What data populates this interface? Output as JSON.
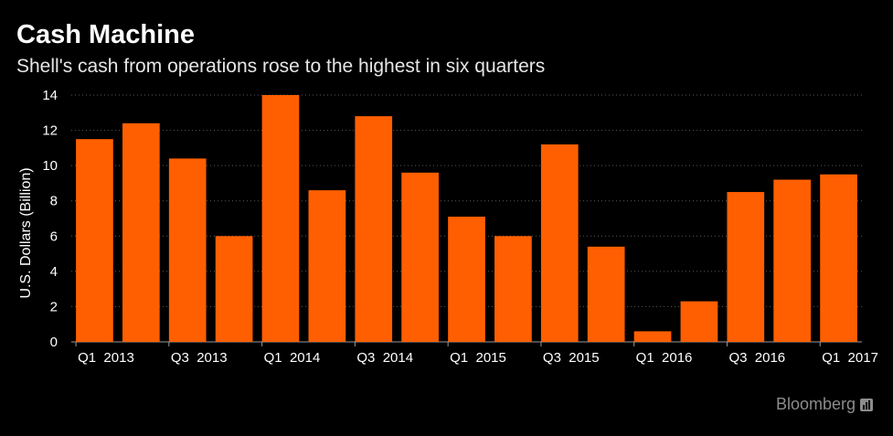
{
  "header": {
    "title": "Cash Machine",
    "subtitle": "Shell's cash from operations rose to the highest in six quarters"
  },
  "source": {
    "label": "Bloomberg",
    "icon": "bloomberg-chart-icon"
  },
  "colors": {
    "background": "#000000",
    "bar": "#ff5f00",
    "grid": "#5a5a5a",
    "text": "#ffffff",
    "source": "#8c8c8c"
  },
  "chart_data": {
    "type": "bar",
    "title": "Cash Machine",
    "subtitle": "Shell's cash from operations rose to the highest in six quarters",
    "xlabel": "",
    "ylabel": "U.S. Dollars (Billion)",
    "ylim": [
      0,
      14
    ],
    "yticks": [
      0,
      2,
      4,
      6,
      8,
      10,
      12,
      14
    ],
    "grid": true,
    "categories": [
      "Q1 2013",
      "Q2 2013",
      "Q3 2013",
      "Q4 2013",
      "Q1 2014",
      "Q2 2014",
      "Q3 2014",
      "Q4 2014",
      "Q1 2015",
      "Q2 2015",
      "Q3 2015",
      "Q4 2015",
      "Q1 2016",
      "Q2 2016",
      "Q3 2016",
      "Q4 2016",
      "Q1 2017"
    ],
    "tick_labels": [
      "Q1  2013",
      "",
      "Q3  2013",
      "",
      "Q1  2014",
      "",
      "Q3  2014",
      "",
      "Q1  2015",
      "",
      "Q3  2015",
      "",
      "Q1  2016",
      "",
      "Q3  2016",
      "",
      "Q1  2017"
    ],
    "values": [
      11.5,
      12.4,
      10.4,
      6.0,
      14.0,
      8.6,
      12.8,
      9.6,
      7.1,
      6.0,
      11.2,
      5.4,
      0.6,
      2.3,
      8.5,
      9.2,
      9.5
    ]
  }
}
